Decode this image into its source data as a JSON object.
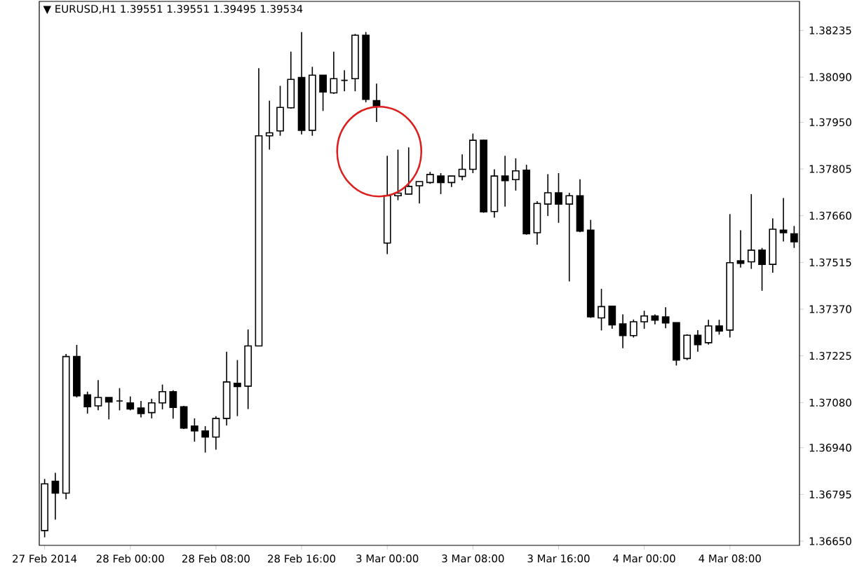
{
  "chart_data": {
    "type": "candlestick",
    "title": "▼ EURUSD,H1  1.39551 1.39551 1.39495 1.39534",
    "color": "#000000",
    "categories": [
      "27 Feb 2014",
      null,
      null,
      null,
      null,
      null,
      null,
      null,
      "28 Feb 00:00",
      null,
      null,
      null,
      null,
      null,
      null,
      null,
      "28 Feb 08:00",
      null,
      null,
      null,
      null,
      null,
      null,
      null,
      "28 Feb 16:00",
      null,
      null,
      null,
      null,
      null,
      null,
      null,
      "3 Mar 00:00",
      null,
      null,
      null,
      null,
      null,
      null,
      null,
      "3 Mar 08:00",
      null,
      null,
      null,
      null,
      null,
      null,
      null,
      "3 Mar 16:00",
      null,
      null,
      null,
      null,
      null,
      null,
      null,
      "4 Mar 00:00",
      null,
      null,
      null,
      null,
      null,
      null,
      null,
      "4 Mar 08:00",
      null,
      null,
      null,
      null,
      null,
      null
    ],
    "ohlc": [
      [
        1.36683,
        1.36843,
        1.36662,
        1.36828
      ],
      [
        1.36836,
        1.36862,
        1.36717,
        1.36799
      ],
      [
        1.36799,
        1.37231,
        1.3678,
        1.37223
      ],
      [
        1.37223,
        1.37259,
        1.37096,
        1.37101
      ],
      [
        1.37104,
        1.37114,
        1.37046,
        1.37067
      ],
      [
        1.3707,
        1.3715,
        1.37056,
        1.37096
      ],
      [
        1.37096,
        1.37096,
        1.37028,
        1.37082
      ],
      [
        1.37085,
        1.37125,
        1.37056,
        1.37085
      ],
      [
        1.37079,
        1.37099,
        1.37056,
        1.3706
      ],
      [
        1.37063,
        1.37085,
        1.37034,
        1.37046
      ],
      [
        1.37049,
        1.37092,
        1.37031,
        1.37079
      ],
      [
        1.37079,
        1.37136,
        1.37059,
        1.37114
      ],
      [
        1.37114,
        1.37118,
        1.3703,
        1.37065
      ],
      [
        1.37067,
        1.3707,
        1.36998,
        1.37001
      ],
      [
        1.37007,
        1.37031,
        1.36959,
        1.36992
      ],
      [
        1.36992,
        1.37007,
        1.36925,
        1.36973
      ],
      [
        1.36973,
        1.37038,
        1.36934,
        1.37031
      ],
      [
        1.37031,
        1.37238,
        1.37009,
        1.37144
      ],
      [
        1.3714,
        1.37212,
        1.37038,
        1.3713
      ],
      [
        1.37131,
        1.37307,
        1.3706,
        1.37256
      ],
      [
        1.37256,
        1.38118,
        1.37256,
        1.37908
      ],
      [
        1.37908,
        1.38017,
        1.37865,
        1.37917
      ],
      [
        1.37923,
        1.38063,
        1.37908,
        1.37996
      ],
      [
        1.37995,
        1.38169,
        1.37992,
        1.38083
      ],
      [
        1.38089,
        1.3823,
        1.37912,
        1.37925
      ],
      [
        1.37925,
        1.38122,
        1.37908,
        1.38096
      ],
      [
        1.38096,
        1.38096,
        1.37985,
        1.38044
      ],
      [
        1.38041,
        1.38169,
        1.38038,
        1.38085
      ],
      [
        1.3808,
        1.38111,
        1.38046,
        1.3808
      ],
      [
        1.38085,
        1.38224,
        1.38046,
        1.3822
      ],
      [
        1.3822,
        1.3823,
        1.38012,
        1.38021
      ],
      [
        1.38017,
        1.3807,
        1.37951,
        1.38001
      ],
      [
        1.37575,
        1.37846,
        1.37541,
        1.37722
      ],
      [
        1.37722,
        1.37865,
        1.37708,
        1.3773
      ],
      [
        1.37727,
        1.37872,
        1.37727,
        1.37751
      ],
      [
        1.37753,
        1.37766,
        1.37698,
        1.37766
      ],
      [
        1.37763,
        1.37796,
        1.37759,
        1.37788
      ],
      [
        1.37783,
        1.37792,
        1.37727,
        1.37763
      ],
      [
        1.37763,
        1.37783,
        1.37749,
        1.37783
      ],
      [
        1.37782,
        1.3785,
        1.3777,
        1.37804
      ],
      [
        1.37804,
        1.37915,
        1.37792,
        1.37894
      ],
      [
        1.37894,
        1.37896,
        1.37669,
        1.37672
      ],
      [
        1.37673,
        1.37804,
        1.37654,
        1.37783
      ],
      [
        1.37783,
        1.37846,
        1.37688,
        1.37769
      ],
      [
        1.37772,
        1.37838,
        1.37738,
        1.37799
      ],
      [
        1.37801,
        1.37818,
        1.37601,
        1.37604
      ],
      [
        1.37607,
        1.37705,
        1.3757,
        1.37698
      ],
      [
        1.37696,
        1.37789,
        1.37659,
        1.37731
      ],
      [
        1.37731,
        1.37792,
        1.37638,
        1.37696
      ],
      [
        1.37696,
        1.37731,
        1.37456,
        1.37722
      ],
      [
        1.37722,
        1.37773,
        1.37609,
        1.37612
      ],
      [
        1.37615,
        1.37647,
        1.37343,
        1.37346
      ],
      [
        1.37343,
        1.37433,
        1.37304,
        1.37378
      ],
      [
        1.37379,
        1.37379,
        1.37309,
        1.37321
      ],
      [
        1.37324,
        1.37354,
        1.37249,
        1.37288
      ],
      [
        1.37288,
        1.37338,
        1.37282,
        1.37331
      ],
      [
        1.37331,
        1.37365,
        1.37309,
        1.37349
      ],
      [
        1.37349,
        1.37354,
        1.37323,
        1.37336
      ],
      [
        1.37346,
        1.37376,
        1.37311,
        1.37327
      ],
      [
        1.37328,
        1.37328,
        1.37195,
        1.37212
      ],
      [
        1.37217,
        1.37292,
        1.37212,
        1.37289
      ],
      [
        1.37289,
        1.37305,
        1.37238,
        1.3726
      ],
      [
        1.37266,
        1.37337,
        1.3726,
        1.37318
      ],
      [
        1.37318,
        1.37337,
        1.37291,
        1.37302
      ],
      [
        1.37305,
        1.37665,
        1.37282,
        1.37514
      ],
      [
        1.3752,
        1.37615,
        1.37499,
        1.37512
      ],
      [
        1.37517,
        1.37727,
        1.37495,
        1.37553
      ],
      [
        1.37553,
        1.3756,
        1.37427,
        1.37509
      ],
      [
        1.37509,
        1.37652,
        1.37483,
        1.37618
      ],
      [
        1.37615,
        1.37715,
        1.3758,
        1.37607
      ],
      [
        1.37604,
        1.37628,
        1.3756,
        1.37579
      ]
    ],
    "ylim": [
      1.36637,
      1.38325
    ],
    "yticks": [
      {
        "value": 1.3665,
        "label": "1.36650"
      },
      {
        "value": 1.36795,
        "label": "1.36795"
      },
      {
        "value": 1.3694,
        "label": "1.36940"
      },
      {
        "value": 1.3708,
        "label": "1.37080"
      },
      {
        "value": 1.37225,
        "label": "1.37225"
      },
      {
        "value": 1.3737,
        "label": "1.37370"
      },
      {
        "value": 1.37515,
        "label": "1.37515"
      },
      {
        "value": 1.3766,
        "label": "1.37660"
      },
      {
        "value": 1.37805,
        "label": "1.37805"
      },
      {
        "value": 1.3795,
        "label": "1.37950"
      },
      {
        "value": 1.3809,
        "label": "1.38090"
      },
      {
        "value": 1.38235,
        "label": "1.38235"
      }
    ]
  }
}
